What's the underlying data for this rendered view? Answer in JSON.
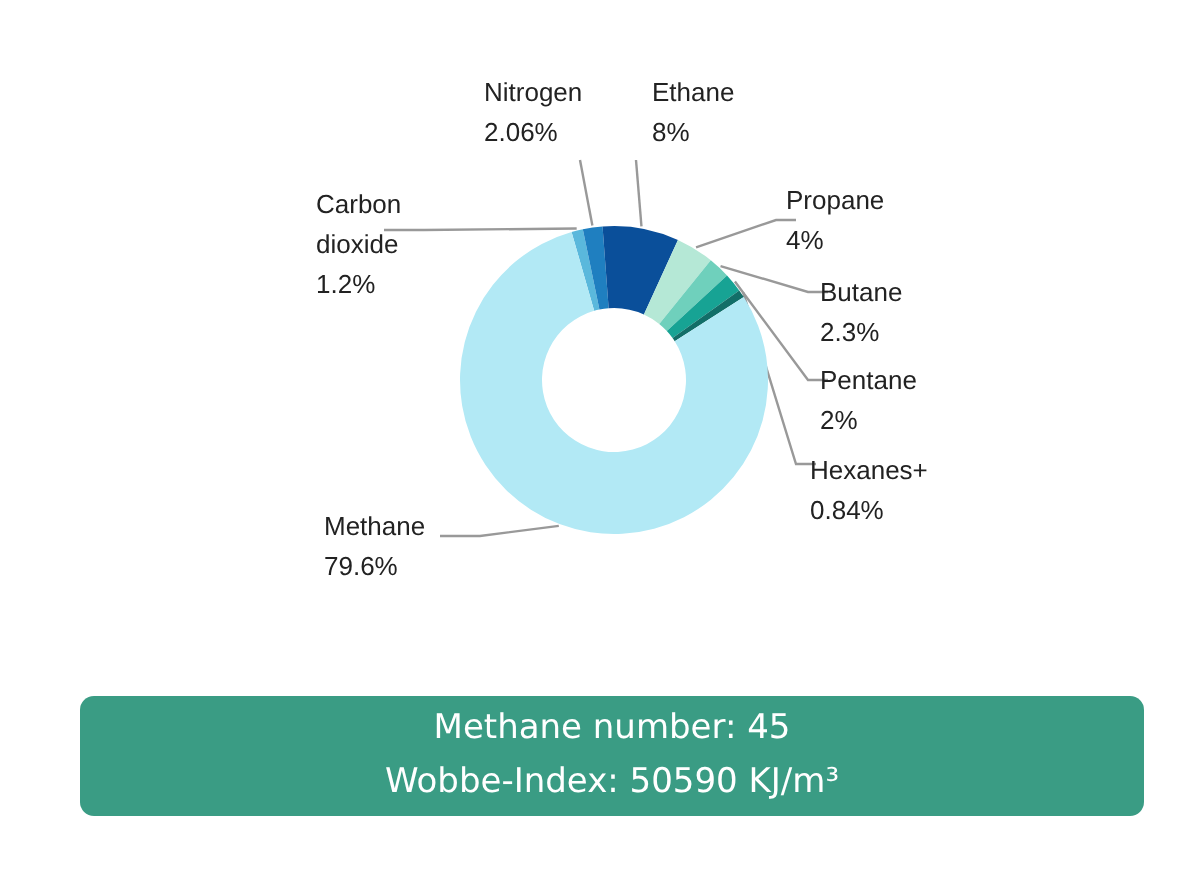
{
  "chart_data": {
    "type": "donut",
    "categories": [
      "Carbon dioxide",
      "Nitrogen",
      "Ethane",
      "Propane",
      "Butane",
      "Pentane",
      "Hexanes+",
      "Methane"
    ],
    "values": [
      1.2,
      2.06,
      8,
      4,
      2.3,
      2,
      0.84,
      79.6
    ],
    "value_labels": [
      "1.2%",
      "2.06%",
      "8%",
      "4%",
      "2.3%",
      "2%",
      "0.84%",
      "79.6%"
    ],
    "colors": [
      "#5ab8dc",
      "#1f7fc0",
      "#0a4f9a",
      "#b5e8d6",
      "#6fd0bc",
      "#17a394",
      "#126e68",
      "#b2e9f5"
    ],
    "annotations": [
      "Methane number: 45",
      "Wobbe-Index: 50590 KJ/m³"
    ]
  }
}
